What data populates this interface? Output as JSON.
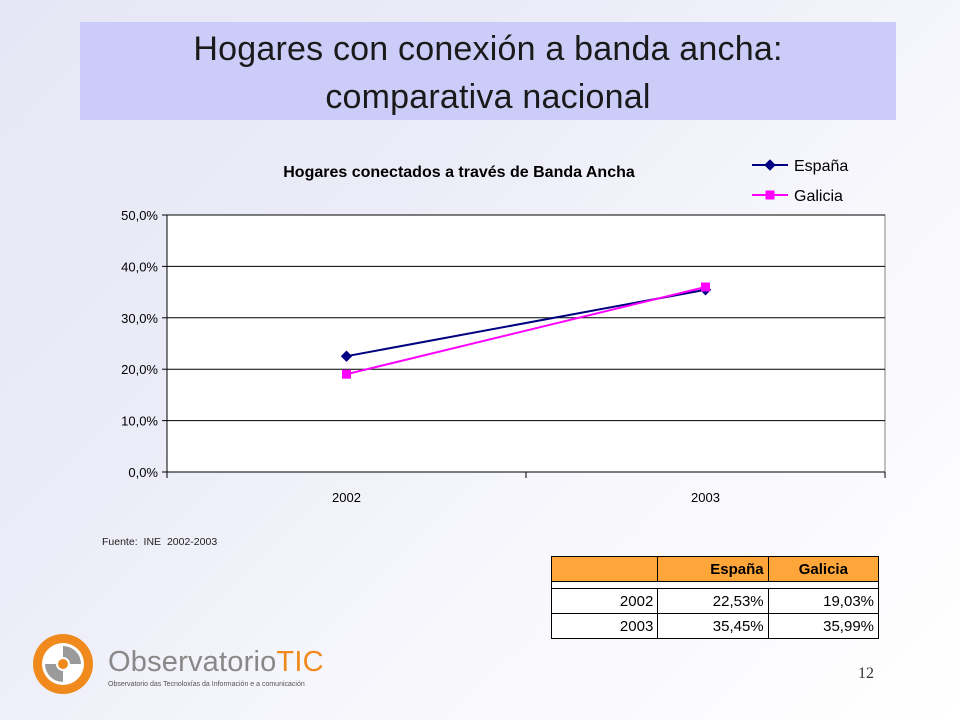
{
  "slide": {
    "title_line1": "Hogares con conexión a banda ancha:",
    "title_line2": "comparativa nacional",
    "source_label": "Fuente:",
    "source_value": "INE 2002-2003",
    "page_number": "12"
  },
  "chart_data": {
    "type": "line",
    "title": "Hogares conectados a través de Banda Ancha",
    "categories": [
      "2002",
      "2003"
    ],
    "series": [
      {
        "name": "España",
        "values": [
          22.53,
          35.45
        ],
        "color": "#000080",
        "marker": "diamond"
      },
      {
        "name": "Galicia",
        "values": [
          19.03,
          35.99
        ],
        "color": "#ff00ff",
        "marker": "square"
      }
    ],
    "ylim": [
      0,
      50
    ],
    "y_ticks": [
      0,
      10,
      20,
      30,
      40,
      50
    ],
    "y_tick_labels": [
      "0,0%",
      "10,0%",
      "20,0%",
      "30,0%",
      "40,0%",
      "50,0%"
    ],
    "grid": true,
    "legend_position": "top-right",
    "xlabel": "",
    "ylabel": ""
  },
  "table": {
    "header": [
      "",
      "España",
      "Galicia"
    ],
    "rows": [
      [
        "2002",
        "22,53%",
        "19,03%"
      ],
      [
        "2003",
        "35,45%",
        "35,99%"
      ]
    ],
    "header_color": "#ffa63a"
  },
  "logo": {
    "name_part1": "Observatorio",
    "name_part2": "TIC",
    "tagline": "Observatorio das Tecnoloxías da Información e a comunicación",
    "accent_color": "#f08a1c"
  }
}
